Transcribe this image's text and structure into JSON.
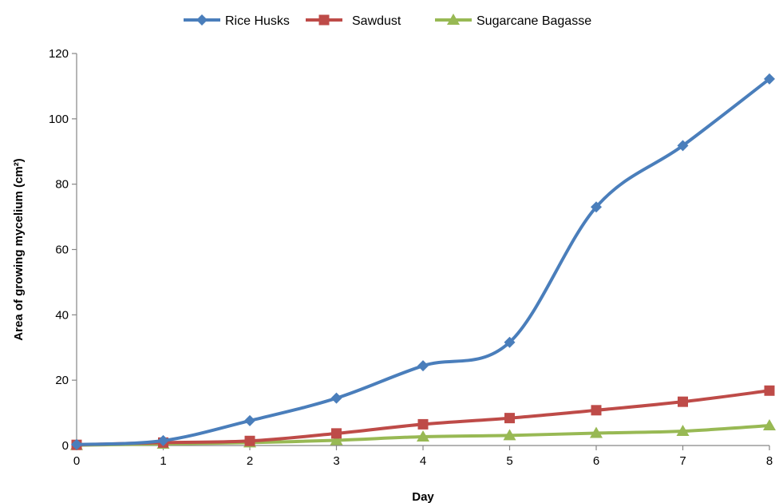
{
  "chart_data": {
    "type": "line",
    "title": "",
    "xlabel": "Day",
    "ylabel": "Area of growing mycelium (cm²)",
    "x": [
      0,
      1,
      2,
      3,
      4,
      5,
      6,
      7,
      8
    ],
    "xlim": [
      0,
      8
    ],
    "ylim": [
      0,
      120
    ],
    "yticks": [
      0,
      20,
      40,
      60,
      80,
      100,
      120
    ],
    "grid": false,
    "legend_position": "top",
    "series": [
      {
        "name": "Rice Husks",
        "color": "#4a7ebb",
        "marker": "diamond",
        "values": [
          0.3,
          1.5,
          7.6,
          14.5,
          24.4,
          31.6,
          73.0,
          91.8,
          112.2
        ]
      },
      {
        "name": "Sawdust",
        "color": "#be4b48",
        "marker": "square",
        "values": [
          0.2,
          0.9,
          1.4,
          3.7,
          6.5,
          8.4,
          10.8,
          13.4,
          16.8
        ]
      },
      {
        "name": "Sugarcane Bagasse",
        "color": "#98b954",
        "marker": "triangle",
        "values": [
          0.1,
          0.5,
          0.9,
          1.6,
          2.7,
          3.1,
          3.8,
          4.4,
          6.1
        ]
      }
    ]
  }
}
